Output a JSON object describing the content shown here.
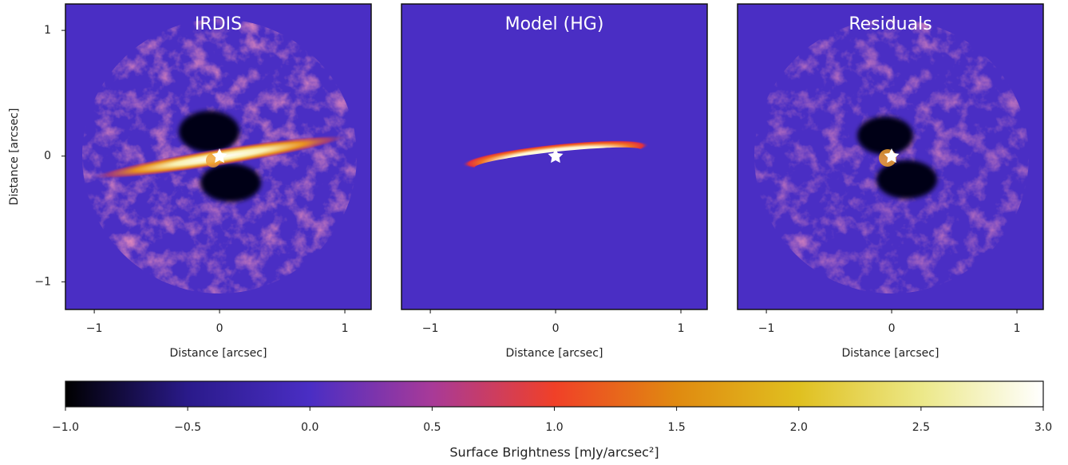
{
  "chart_data": [
    {
      "type": "image",
      "title": "IRDIS",
      "xlabel": "Distance [arcsec]",
      "ylabel": "Distance [arcsec]",
      "xlim": [
        -1.23,
        1.21
      ],
      "ylim": [
        -1.22,
        1.21
      ],
      "xticks": [
        {
          "value": -1,
          "label": "−1"
        },
        0,
        1
      ],
      "yticks": [
        {
          "value": -1,
          "label": "−1"
        },
        0,
        1
      ]
    },
    {
      "type": "image",
      "title": "Model (HG)",
      "xlabel": "Distance [arcsec]",
      "xlim": [
        -1.23,
        1.21
      ],
      "ylim": [
        -1.22,
        1.21
      ],
      "xticks": [
        {
          "value": -1,
          "label": "−1"
        },
        0,
        1
      ]
    },
    {
      "type": "image",
      "title": "Residuals",
      "xlabel": "Distance [arcsec]",
      "xlim": [
        -1.23,
        1.21
      ],
      "ylim": [
        -1.22,
        1.21
      ],
      "xticks": [
        {
          "value": -1,
          "label": "−1"
        },
        0,
        1
      ]
    },
    {
      "type": "colorbar",
      "label": "Surface Brightness [mJy/arcsec²]",
      "xlim": [
        -1,
        3
      ],
      "xticks": [
        {
          "value": -1,
          "label": "−1.0"
        },
        {
          "value": -0.5,
          "label": "−0.5"
        },
        {
          "value": 0,
          "label": "0.0"
        },
        {
          "value": 0.5,
          "label": "0.5"
        },
        {
          "value": 1,
          "label": "1.0"
        },
        {
          "value": 1.5,
          "label": "1.5"
        },
        {
          "value": 2,
          "label": "2.0"
        },
        {
          "value": 2.5,
          "label": "2.5"
        },
        {
          "value": 3,
          "label": "3.0"
        }
      ],
      "colormap": [
        "#000000",
        "#2a1a8a",
        "#4a2ec4",
        "#a83a98",
        "#f04028",
        "#e08a10",
        "#e0c020",
        "#ece888",
        "#ffffff"
      ]
    }
  ]
}
